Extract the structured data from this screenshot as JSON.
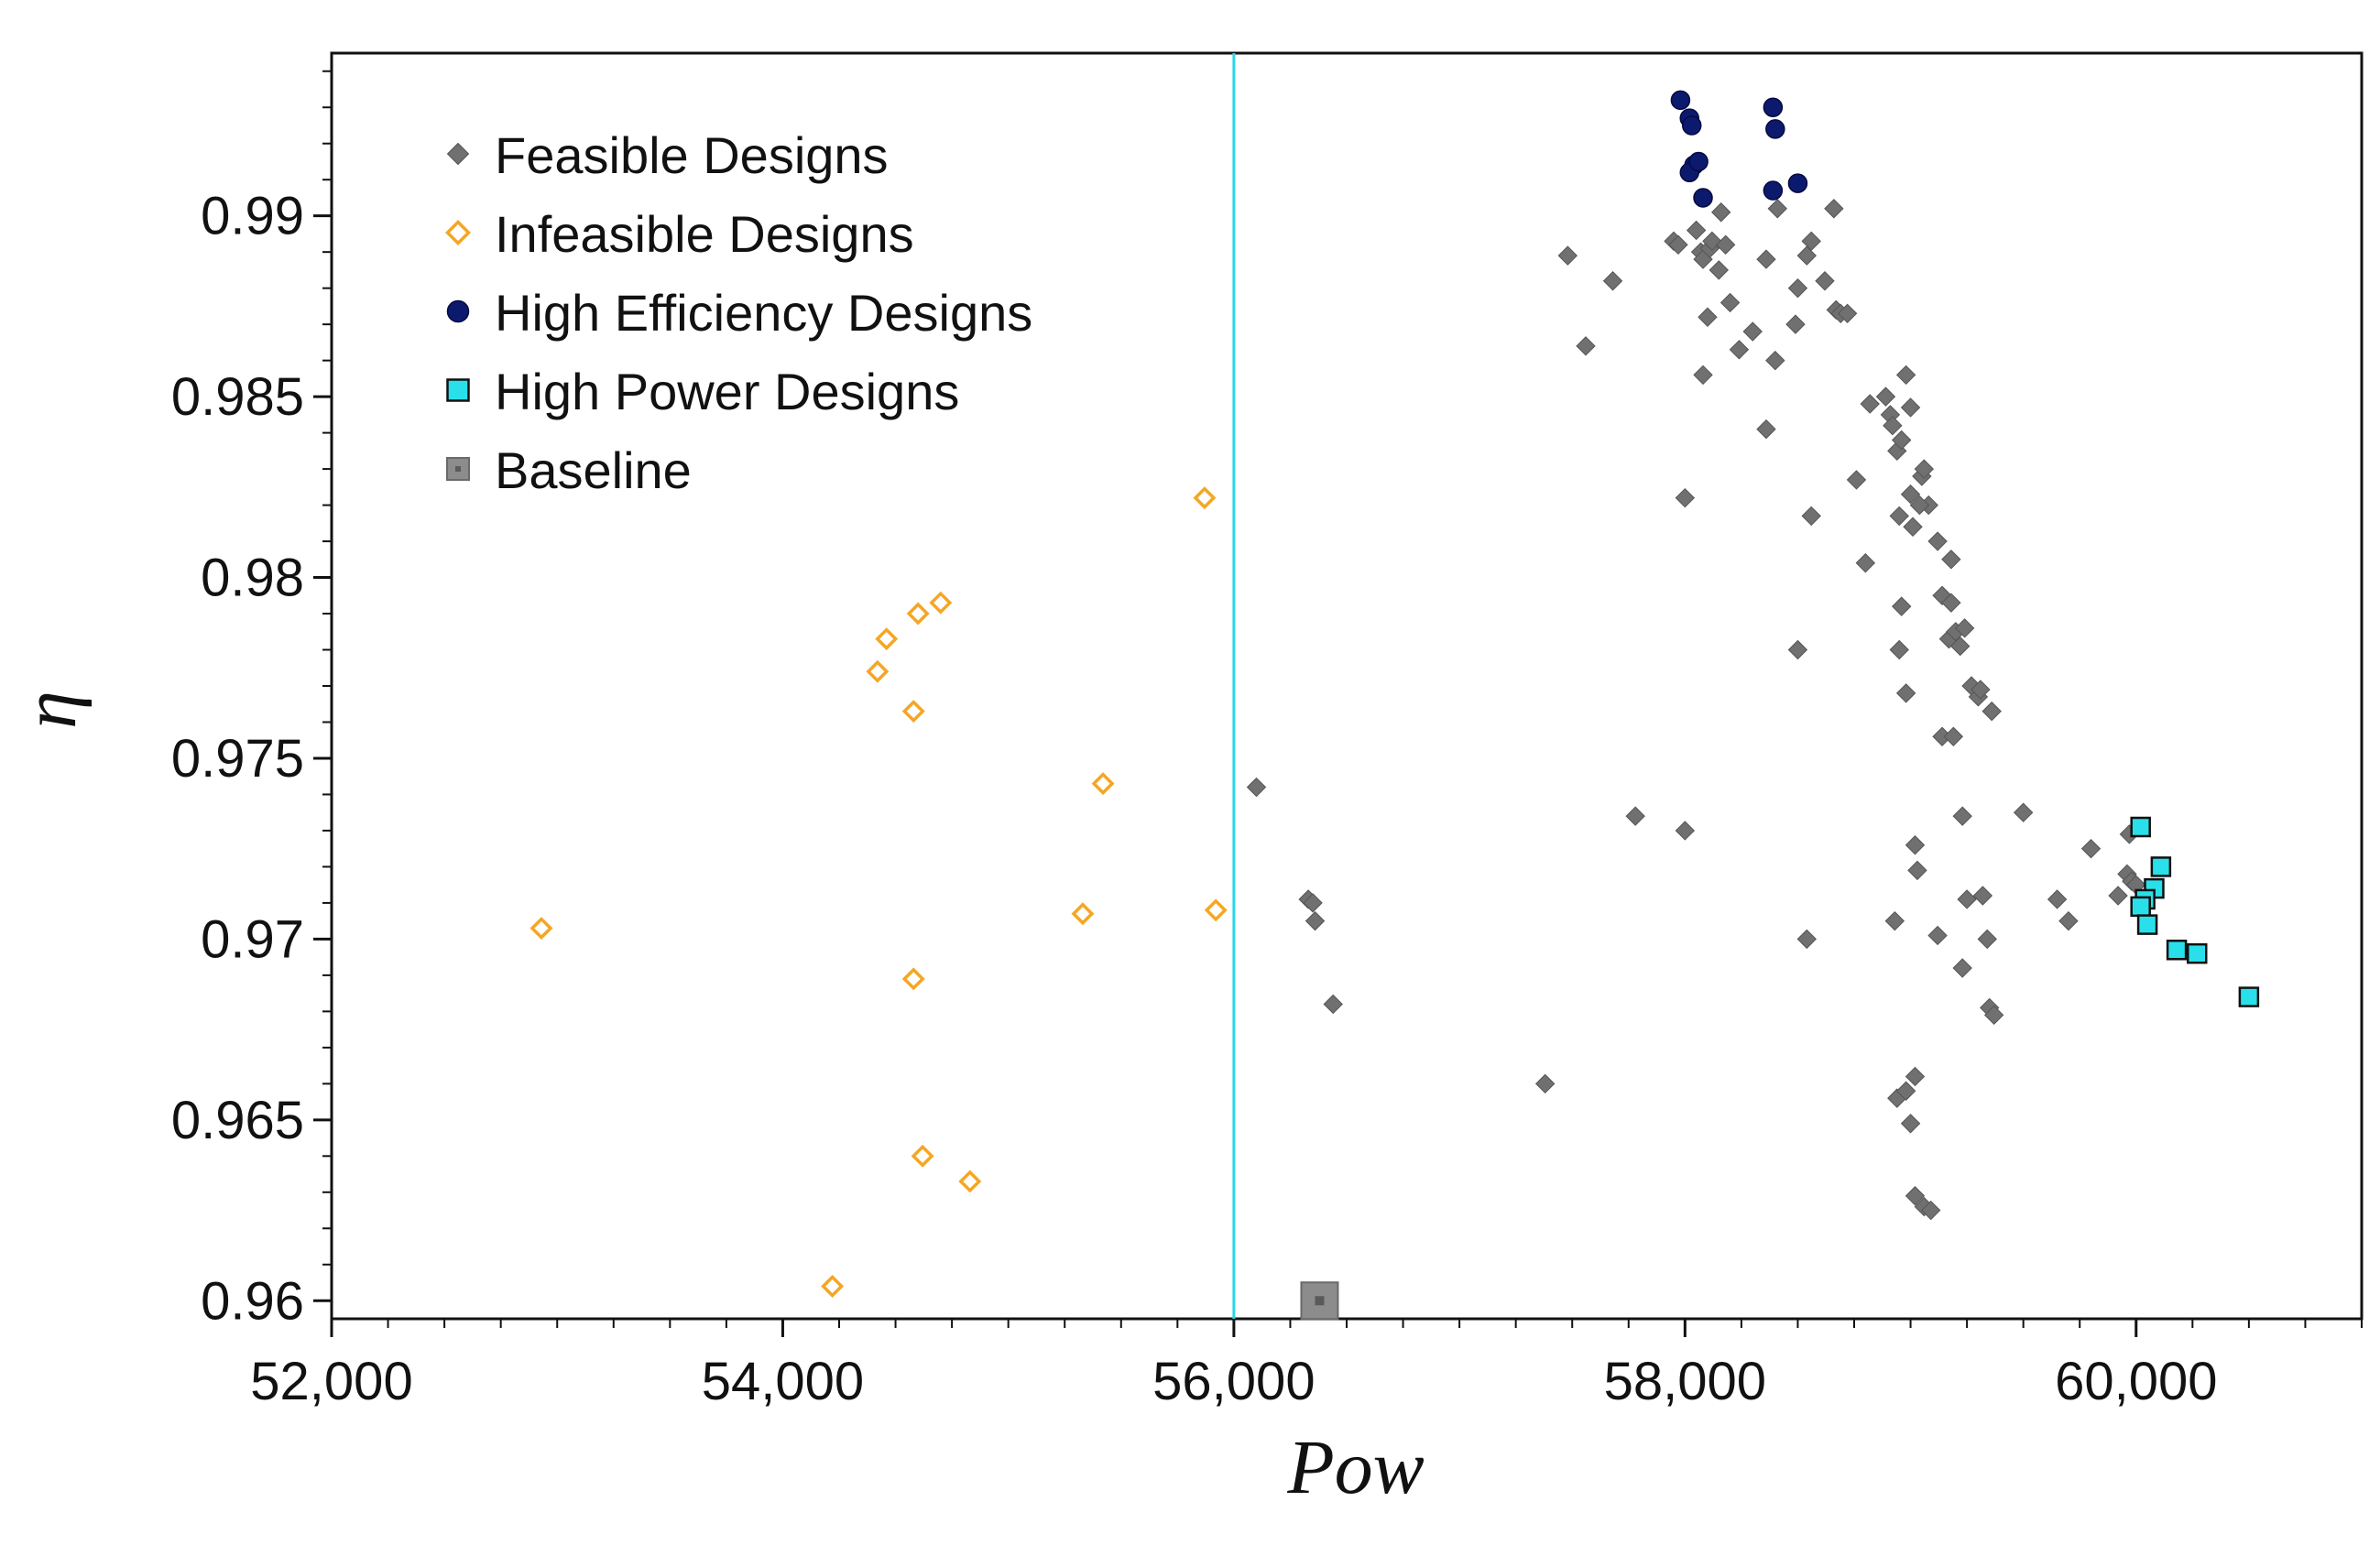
{
  "chart_data": {
    "type": "scatter",
    "title": "",
    "xlabel": "Pow",
    "ylabel": "η",
    "xlim": [
      52000,
      61000
    ],
    "ylim": [
      0.9595,
      0.9945
    ],
    "x_ticks": [
      {
        "value": 52000,
        "label": "52,000"
      },
      {
        "value": 54000,
        "label": "54,000"
      },
      {
        "value": 56000,
        "label": "56,000"
      },
      {
        "value": 58000,
        "label": "58,000"
      },
      {
        "value": 60000,
        "label": "60,000"
      }
    ],
    "y_ticks": [
      {
        "value": 0.96,
        "label": "0.96"
      },
      {
        "value": 0.965,
        "label": "0.965"
      },
      {
        "value": 0.97,
        "label": "0.97"
      },
      {
        "value": 0.975,
        "label": "0.975"
      },
      {
        "value": 0.98,
        "label": "0.98"
      },
      {
        "value": 0.985,
        "label": "0.985"
      },
      {
        "value": 0.99,
        "label": "0.99"
      }
    ],
    "grid": true,
    "legend_position": "top-left",
    "reference_line": {
      "x": 56000,
      "color": "#2ed6e8"
    },
    "series": [
      {
        "name": "Feasible Designs",
        "marker": "diamond-filled",
        "color": "#707070",
        "points": [
          [
            57480,
            0.9889
          ],
          [
            57560,
            0.9864
          ],
          [
            57680,
            0.9882
          ],
          [
            57950,
            0.9893
          ],
          [
            57970,
            0.9892
          ],
          [
            58050,
            0.9896
          ],
          [
            58070,
            0.989
          ],
          [
            58080,
            0.9888
          ],
          [
            58100,
            0.9872
          ],
          [
            58110,
            0.9891
          ],
          [
            58120,
            0.9893
          ],
          [
            58150,
            0.9885
          ],
          [
            58180,
            0.9892
          ],
          [
            58160,
            0.9901
          ],
          [
            58200,
            0.9876
          ],
          [
            58240,
            0.9863
          ],
          [
            58300,
            0.9868
          ],
          [
            58360,
            0.9888
          ],
          [
            58400,
            0.986
          ],
          [
            58410,
            0.9902
          ],
          [
            58490,
            0.987
          ],
          [
            58500,
            0.988
          ],
          [
            58540,
            0.9889
          ],
          [
            58560,
            0.9893
          ],
          [
            58620,
            0.9882
          ],
          [
            58660,
            0.9902
          ],
          [
            58670,
            0.9874
          ],
          [
            58690,
            0.9873
          ],
          [
            58720,
            0.9873
          ],
          [
            58080,
            0.9856
          ],
          [
            58360,
            0.9841
          ],
          [
            58000,
            0.9822
          ],
          [
            58560,
            0.9817
          ],
          [
            58760,
            0.9827
          ],
          [
            58820,
            0.9848
          ],
          [
            58800,
            0.9804
          ],
          [
            58890,
            0.985
          ],
          [
            58910,
            0.9845
          ],
          [
            58920,
            0.9842
          ],
          [
            58940,
            0.9835
          ],
          [
            58960,
            0.9838
          ],
          [
            58980,
            0.9856
          ],
          [
            59000,
            0.9847
          ],
          [
            58950,
            0.9817
          ],
          [
            59000,
            0.9823
          ],
          [
            59050,
            0.9828
          ],
          [
            59080,
            0.982
          ],
          [
            59120,
            0.981
          ],
          [
            59010,
            0.9814
          ],
          [
            59060,
            0.983
          ],
          [
            59040,
            0.982
          ],
          [
            59180,
            0.9805
          ],
          [
            58960,
            0.9792
          ],
          [
            59140,
            0.9795
          ],
          [
            59170,
            0.9783
          ],
          [
            59200,
            0.9785
          ],
          [
            59240,
            0.9786
          ],
          [
            59220,
            0.9781
          ],
          [
            59180,
            0.9793
          ],
          [
            58950,
            0.978
          ],
          [
            58500,
            0.978
          ],
          [
            58980,
            0.9768
          ],
          [
            59270,
            0.977
          ],
          [
            59300,
            0.9767
          ],
          [
            59310,
            0.9769
          ],
          [
            59360,
            0.9763
          ],
          [
            59140,
            0.9756
          ],
          [
            59190,
            0.9756
          ],
          [
            56100,
            0.9742
          ],
          [
            57780,
            0.9734
          ],
          [
            58000,
            0.973
          ],
          [
            59020,
            0.9726
          ],
          [
            59230,
            0.9734
          ],
          [
            59500,
            0.9735
          ],
          [
            59800,
            0.9725
          ],
          [
            59030,
            0.9719
          ],
          [
            59650,
            0.9711
          ],
          [
            59700,
            0.9705
          ],
          [
            59920,
            0.9712
          ],
          [
            59960,
            0.9718
          ],
          [
            59980,
            0.9716
          ],
          [
            60000,
            0.9715
          ],
          [
            59970,
            0.9729
          ],
          [
            56330,
            0.9711
          ],
          [
            56350,
            0.971
          ],
          [
            56360,
            0.9705
          ],
          [
            58930,
            0.9705
          ],
          [
            59250,
            0.9711
          ],
          [
            59320,
            0.9712
          ],
          [
            59120,
            0.9701
          ],
          [
            59340,
            0.97
          ],
          [
            58540,
            0.97
          ],
          [
            56440,
            0.9682
          ],
          [
            59230,
            0.9692
          ],
          [
            59350,
            0.9681
          ],
          [
            59370,
            0.9679
          ],
          [
            57380,
            0.966
          ],
          [
            58940,
            0.9656
          ],
          [
            58980,
            0.9658
          ],
          [
            59020,
            0.9662
          ],
          [
            59000,
            0.9649
          ],
          [
            59020,
            0.9629
          ],
          [
            59060,
            0.9626
          ],
          [
            59090,
            0.9625
          ]
        ]
      },
      {
        "name": "Infeasible Designs",
        "marker": "diamond-open",
        "color": "#f5a623",
        "points": [
          [
            52930,
            0.9703
          ],
          [
            54220,
            0.9604
          ],
          [
            54420,
            0.9774
          ],
          [
            54460,
            0.9783
          ],
          [
            54580,
            0.9763
          ],
          [
            54600,
            0.979
          ],
          [
            54580,
            0.9689
          ],
          [
            54620,
            0.964
          ],
          [
            54700,
            0.9793
          ],
          [
            54830,
            0.9633
          ],
          [
            55330,
            0.9707
          ],
          [
            55420,
            0.9743
          ],
          [
            55870,
            0.9822
          ],
          [
            55920,
            0.9708
          ]
        ]
      },
      {
        "name": "High Efficiency Designs",
        "marker": "circle",
        "color": "#0c1a6e",
        "points": [
          [
            57980,
            0.9932
          ],
          [
            58020,
            0.9927
          ],
          [
            58030,
            0.9925
          ],
          [
            58040,
            0.9914
          ],
          [
            58020,
            0.9912
          ],
          [
            58060,
            0.9915
          ],
          [
            58080,
            0.9905
          ],
          [
            58390,
            0.993
          ],
          [
            58400,
            0.9924
          ],
          [
            58390,
            0.9907
          ],
          [
            58500,
            0.9909
          ]
        ]
      },
      {
        "name": "High Power Designs",
        "marker": "square",
        "color": "#29e0ea",
        "points": [
          [
            60020,
            0.9731
          ],
          [
            60110,
            0.972
          ],
          [
            60080,
            0.9714
          ],
          [
            60040,
            0.9711
          ],
          [
            60020,
            0.9709
          ],
          [
            60050,
            0.9704
          ],
          [
            60180,
            0.9697
          ],
          [
            60270,
            0.9696
          ],
          [
            60500,
            0.9684
          ]
        ]
      },
      {
        "name": "Baseline",
        "marker": "square-large",
        "color": "#8c8c8c",
        "points": [
          [
            56380,
            0.96
          ]
        ]
      }
    ]
  }
}
